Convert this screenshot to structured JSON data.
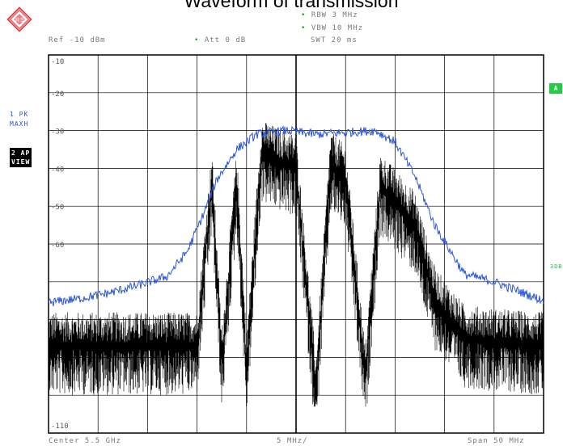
{
  "title": "Waveform of transmission",
  "header": {
    "rbw": "RBW 3 MHz",
    "vbw": "VBW 10 MHz",
    "swt": "SWT 20 ms",
    "ref": "Ref -10 dBm",
    "att": "Att  0 dB"
  },
  "side": {
    "trace1_line1": "1 PK",
    "trace1_line2": "MAXH",
    "trace2_line1": "2 AP",
    "trace2_line2": "VIEW",
    "marker_a": "A",
    "label_3db": "3DB"
  },
  "footer": {
    "center": "Center 5.5  GHz",
    "div": "5 MHz/",
    "span": "Span 50 MHz"
  },
  "chart_data": {
    "type": "line",
    "ylim": [
      -110,
      -10
    ],
    "xlim": [
      5475,
      5525
    ],
    "x_unit": "MHz",
    "y_unit": "dBm",
    "grid": true,
    "y_tick_labels": [
      "-10",
      "-20",
      "-30",
      "-40",
      "-50",
      "-60",
      "-110"
    ],
    "series": [
      {
        "name": "1 PK MAXH",
        "color": "#2a55dd",
        "x": [
          5475,
          5478,
          5481,
          5484,
          5487,
          5489,
          5490.5,
          5492,
          5494,
          5496,
          5499,
          5502,
          5505,
          5508,
          5510,
          5512,
          5514,
          5517,
          5520,
          5523,
          5525
        ],
        "y": [
          -75.5,
          -74.5,
          -73,
          -71,
          -68.5,
          -62,
          -53,
          -43,
          -35,
          -31,
          -30,
          -31,
          -30.5,
          -30,
          -33,
          -42,
          -55,
          -68,
          -70,
          -73,
          -75
        ]
      },
      {
        "name": "2 AP VIEW",
        "color": "#000000",
        "x": [
          5475,
          5479,
          5484,
          5487,
          5490,
          5491.5,
          5492.5,
          5494,
          5495,
          5496.5,
          5498,
          5500,
          5502,
          5503.5,
          5505,
          5507,
          5508.5,
          5510,
          5512,
          5514,
          5517,
          5520,
          5525
        ],
        "y": [
          -84,
          -84,
          -84,
          -84,
          -84,
          -41,
          -89,
          -41,
          -90,
          -33,
          -35,
          -37,
          -96,
          -36,
          -40,
          -93,
          -42,
          -46,
          -52,
          -72,
          -82,
          -83,
          -84
        ]
      }
    ]
  }
}
